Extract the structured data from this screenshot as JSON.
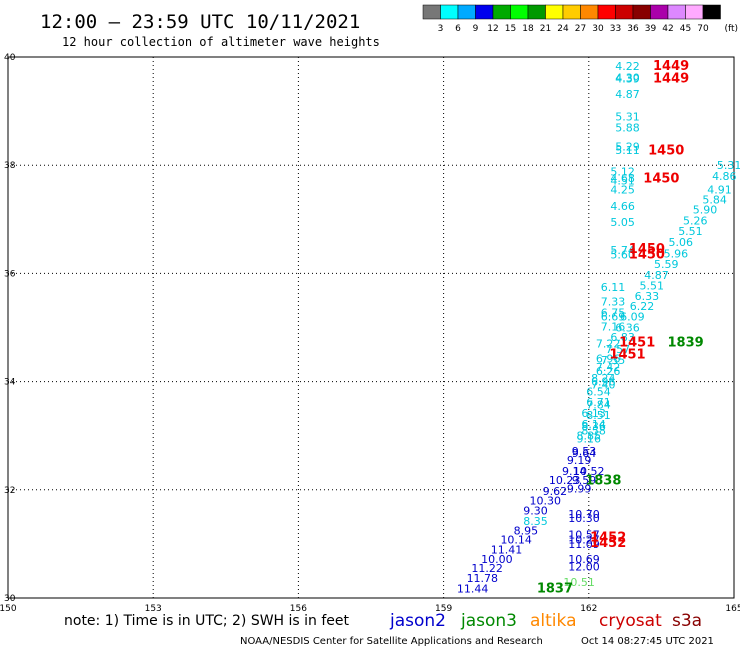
{
  "header": {
    "title": "12:00 – 23:59 UTC 10/11/2021",
    "subtitle": "12 hour collection of altimeter wave heights"
  },
  "colorbar": {
    "labels": [
      "3",
      "6",
      "9",
      "12",
      "15",
      "18",
      "21",
      "24",
      "27",
      "30",
      "33",
      "36",
      "39",
      "42",
      "45",
      "70"
    ],
    "unit": "(ft)",
    "colors": [
      "#777777",
      "#00ffff",
      "#00aaff",
      "#0000ee",
      "#00aa00",
      "#00ff00",
      "#009900",
      "#ffff00",
      "#ffcc00",
      "#ff8800",
      "#ff0000",
      "#cc0000",
      "#880000",
      "#aa00aa",
      "#dd88ff",
      "#ffaaff",
      "#000000"
    ]
  },
  "footer": {
    "note": "note: 1) Time is in UTC; 2) SWH is in feet",
    "credit": "NOAA/NESDIS Center for Satellite Applications and Research",
    "timestamp": "Oct 14 08:27:45 UTC 2021"
  },
  "legend": [
    {
      "name": "jason2",
      "color": "#0000cc"
    },
    {
      "name": "jason3",
      "color": "#008800"
    },
    {
      "name": "altika",
      "color": "#ff8800"
    },
    {
      "name": "cryosat",
      "color": "#cc0000"
    },
    {
      "name": "s3a",
      "color": "#880000"
    }
  ],
  "chart_data": {
    "type": "scatter",
    "xlim": [
      150,
      165
    ],
    "ylim": [
      30,
      40
    ],
    "xticks": [
      "150",
      "153",
      "156",
      "159",
      "162",
      "165"
    ],
    "yticks": [
      "30",
      "32",
      "34",
      "36",
      "38",
      "40"
    ],
    "grid": true,
    "series": [
      {
        "name": "",
        "color": "#00c8dc",
        "points": [
          {
            "x": 162.8,
            "y": 39.83,
            "label": "4.22"
          },
          {
            "x": 162.8,
            "y": 39.62,
            "label": "4.30"
          },
          {
            "x": 162.8,
            "y": 39.6,
            "label": "4.39"
          },
          {
            "x": 162.8,
            "y": 39.32,
            "label": "4.87"
          },
          {
            "x": 162.8,
            "y": 38.9,
            "label": "5.31"
          },
          {
            "x": 162.8,
            "y": 38.7,
            "label": "5.88"
          },
          {
            "x": 162.8,
            "y": 38.35,
            "label": "5.29"
          },
          {
            "x": 162.8,
            "y": 38.28,
            "label": "5.11"
          },
          {
            "x": 162.7,
            "y": 37.88,
            "label": "5.12"
          },
          {
            "x": 162.7,
            "y": 37.76,
            "label": "4.68"
          },
          {
            "x": 162.7,
            "y": 37.72,
            "label": "4.51"
          },
          {
            "x": 162.7,
            "y": 37.55,
            "label": "4.25"
          },
          {
            "x": 162.7,
            "y": 37.25,
            "label": "4.66"
          },
          {
            "x": 162.7,
            "y": 36.95,
            "label": "5.05"
          },
          {
            "x": 162.7,
            "y": 36.43,
            "label": "5.74"
          },
          {
            "x": 162.7,
            "y": 36.35,
            "label": "5.60"
          },
          {
            "x": 162.5,
            "y": 35.75,
            "label": "6.11"
          },
          {
            "x": 162.5,
            "y": 35.48,
            "label": "7.33"
          },
          {
            "x": 162.5,
            "y": 35.28,
            "label": "6.75"
          },
          {
            "x": 162.5,
            "y": 35.2,
            "label": "6.69"
          },
          {
            "x": 162.5,
            "y": 35.02,
            "label": "7.16"
          },
          {
            "x": 162.4,
            "y": 34.7,
            "label": "7.22"
          },
          {
            "x": 162.4,
            "y": 34.43,
            "label": "6.96"
          },
          {
            "x": 162.4,
            "y": 34.27,
            "label": "7.42"
          },
          {
            "x": 162.3,
            "y": 34.07,
            "label": "8.24"
          },
          {
            "x": 162.3,
            "y": 33.95,
            "label": "7.40"
          },
          {
            "x": 162.2,
            "y": 33.58,
            "label": "7.84"
          },
          {
            "x": 162.2,
            "y": 33.38,
            "label": "8.51"
          },
          {
            "x": 162.1,
            "y": 33.18,
            "label": "8.36"
          },
          {
            "x": 162.1,
            "y": 33.1,
            "label": "8.58"
          },
          {
            "x": 162.0,
            "y": 33.0,
            "label": "8.85"
          },
          {
            "x": 162.0,
            "y": 32.95,
            "label": "9.16"
          },
          {
            "x": 164.9,
            "y": 38.0,
            "label": "5.31"
          },
          {
            "x": 164.8,
            "y": 37.8,
            "label": "4.86"
          },
          {
            "x": 164.7,
            "y": 37.55,
            "label": "4.91"
          },
          {
            "x": 164.6,
            "y": 37.37,
            "label": "5.84"
          },
          {
            "x": 164.4,
            "y": 37.18,
            "label": "5.90"
          },
          {
            "x": 164.2,
            "y": 36.98,
            "label": "5.26"
          },
          {
            "x": 164.1,
            "y": 36.78,
            "label": "5.51"
          },
          {
            "x": 163.9,
            "y": 36.58,
            "label": "5.06"
          },
          {
            "x": 163.8,
            "y": 36.37,
            "label": "5.96"
          },
          {
            "x": 163.6,
            "y": 36.17,
            "label": "5.59"
          },
          {
            "x": 163.4,
            "y": 35.97,
            "label": "4.87"
          },
          {
            "x": 163.3,
            "y": 35.78,
            "label": "5.51"
          },
          {
            "x": 163.2,
            "y": 35.58,
            "label": "6.33"
          },
          {
            "x": 163.1,
            "y": 35.4,
            "label": "6.22"
          },
          {
            "x": 162.9,
            "y": 35.2,
            "label": "6.09"
          },
          {
            "x": 162.8,
            "y": 35.0,
            "label": "6.36"
          },
          {
            "x": 162.7,
            "y": 34.82,
            "label": "6.83"
          },
          {
            "x": 162.6,
            "y": 34.6,
            "label": "7.57"
          },
          {
            "x": 162.5,
            "y": 34.4,
            "label": "7.35"
          },
          {
            "x": 162.4,
            "y": 34.2,
            "label": "6.26"
          },
          {
            "x": 162.3,
            "y": 34.0,
            "label": "6.96"
          },
          {
            "x": 162.2,
            "y": 33.82,
            "label": "6.54"
          },
          {
            "x": 162.2,
            "y": 33.62,
            "label": "6.71"
          },
          {
            "x": 162.1,
            "y": 33.42,
            "label": "6.13"
          },
          {
            "x": 162.1,
            "y": 33.22,
            "label": "6.14"
          }
        ]
      },
      {
        "name": "jason2",
        "color": "#0000cc",
        "points": [
          {
            "x": 161.9,
            "y": 32.72,
            "label": "9.53"
          },
          {
            "x": 161.9,
            "y": 32.68,
            "label": "9.64"
          },
          {
            "x": 161.8,
            "y": 32.55,
            "label": "9.19"
          },
          {
            "x": 161.7,
            "y": 32.35,
            "label": "9.14"
          },
          {
            "x": 161.5,
            "y": 32.18,
            "label": "10.23"
          },
          {
            "x": 161.3,
            "y": 31.98,
            "label": "9.62"
          },
          {
            "x": 161.1,
            "y": 31.8,
            "label": "10.30"
          },
          {
            "x": 160.9,
            "y": 31.62,
            "label": "9.30"
          },
          {
            "x": 160.7,
            "y": 31.25,
            "label": "8.95"
          },
          {
            "x": 160.5,
            "y": 31.08,
            "label": "10.14"
          },
          {
            "x": 160.3,
            "y": 30.9,
            "label": "11.41"
          },
          {
            "x": 160.1,
            "y": 30.72,
            "label": "10.00"
          },
          {
            "x": 159.9,
            "y": 30.55,
            "label": "11.22"
          },
          {
            "x": 159.8,
            "y": 30.37,
            "label": "11.78"
          },
          {
            "x": 159.6,
            "y": 30.18,
            "label": "11.44"
          },
          {
            "x": 162.0,
            "y": 32.35,
            "label": "10.52"
          },
          {
            "x": 161.9,
            "y": 32.18,
            "label": "9.59"
          },
          {
            "x": 161.8,
            "y": 32.02,
            "label": "9.99"
          },
          {
            "x": 161.9,
            "y": 31.55,
            "label": "10.70"
          },
          {
            "x": 161.9,
            "y": 31.48,
            "label": "10.30"
          },
          {
            "x": 161.9,
            "y": 31.17,
            "label": "10.57"
          },
          {
            "x": 161.9,
            "y": 31.08,
            "label": "10.27"
          },
          {
            "x": 161.9,
            "y": 31.0,
            "label": "11.09"
          },
          {
            "x": 161.9,
            "y": 30.72,
            "label": "10.69"
          },
          {
            "x": 161.9,
            "y": 30.58,
            "label": "12.00"
          }
        ]
      },
      {
        "name": "",
        "color": "#00c8dc",
        "points": [
          {
            "x": 160.9,
            "y": 31.42,
            "label": "8.35"
          }
        ]
      },
      {
        "name": "",
        "color": "#66dd66",
        "points": [
          {
            "x": 161.8,
            "y": 30.3,
            "label": "10.51"
          }
        ]
      },
      {
        "name": "cryosat",
        "color": "#ee0000",
        "points": [
          {
            "x": 163.7,
            "y": 39.83,
            "label": "1449"
          },
          {
            "x": 163.7,
            "y": 39.6,
            "label": "1449"
          },
          {
            "x": 163.6,
            "y": 38.27,
            "label": "1450"
          },
          {
            "x": 163.5,
            "y": 37.75,
            "label": "1450"
          },
          {
            "x": 163.2,
            "y": 36.45,
            "label": "1450"
          },
          {
            "x": 163.2,
            "y": 36.35,
            "label": "1450"
          },
          {
            "x": 163.0,
            "y": 34.72,
            "label": "1451"
          },
          {
            "x": 162.8,
            "y": 34.5,
            "label": "1451"
          },
          {
            "x": 162.4,
            "y": 31.12,
            "label": "1452"
          },
          {
            "x": 162.4,
            "y": 31.02,
            "label": "1452"
          }
        ]
      },
      {
        "name": "jason3",
        "color": "#008800",
        "points": [
          {
            "x": 164.0,
            "y": 34.72,
            "label": "1839"
          },
          {
            "x": 162.3,
            "y": 32.17,
            "label": "1838"
          },
          {
            "x": 161.3,
            "y": 30.18,
            "label": "1837"
          }
        ]
      }
    ]
  }
}
